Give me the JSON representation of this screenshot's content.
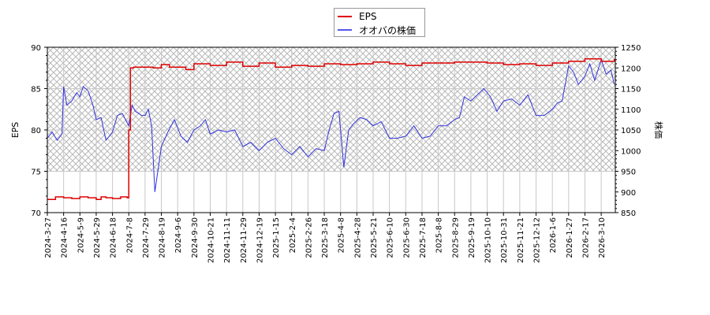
{
  "chart_data": {
    "type": "line",
    "title": "",
    "xlabel": "",
    "ylabel": "EPS",
    "y2label": "株価",
    "ylim": [
      70,
      90
    ],
    "y2lim": [
      850,
      1250
    ],
    "yticks": [
      70,
      75,
      80,
      85,
      90
    ],
    "y2ticks": [
      850,
      900,
      950,
      1000,
      1050,
      1100,
      1150,
      1200,
      1250
    ],
    "grid": true,
    "legend_position": "top-center",
    "hatched_region": {
      "y2_from": 950,
      "y2_to": 1250
    },
    "categories": [
      "2024-3-27",
      "2024-4-16",
      "2024-5-9",
      "2024-5-29",
      "2024-6-18",
      "2024-7-8",
      "2024-7-29",
      "2024-8-19",
      "2024-9-6",
      "2024-9-30",
      "2024-10-21",
      "2024-11-11",
      "2024-11-29",
      "2024-12-19",
      "2025-1-15",
      "2025-2-4",
      "2025-2-26",
      "2025-3-18",
      "2025-4-8",
      "2025-4-28",
      "2025-5-21",
      "2025-6-10",
      "2025-6-30",
      "2025-7-18",
      "2025-8-8",
      "2025-8-29",
      "2025-9-19",
      "2025-10-10",
      "2025-10-31",
      "2025-11-21",
      "2025-12-12",
      "2026-1-6",
      "2026-1-27",
      "2026-2-17",
      "2026-3-10"
    ],
    "series": [
      {
        "name": "EPS",
        "axis": "left",
        "color": "#dd0000",
        "x": [
          0,
          0.5,
          1,
          1.5,
          2,
          2.5,
          3,
          3.3,
          3.6,
          4,
          4.5,
          4.9,
          5,
          5.1,
          5.3,
          6,
          6.5,
          7,
          7.5,
          8,
          8.5,
          9,
          10,
          11,
          12,
          13,
          14,
          15,
          16,
          17,
          18,
          19,
          20,
          21,
          22,
          23,
          24,
          25,
          26,
          27,
          28,
          29,
          30,
          31,
          32,
          33,
          34,
          34.8
        ],
        "values": [
          71.6,
          71.9,
          71.8,
          71.7,
          71.9,
          71.8,
          71.6,
          71.9,
          71.8,
          71.7,
          71.9,
          71.8,
          80.0,
          87.5,
          87.6,
          87.6,
          87.5,
          87.9,
          87.6,
          87.6,
          87.3,
          88.0,
          87.8,
          88.2,
          87.7,
          88.1,
          87.6,
          87.8,
          87.7,
          88.0,
          87.9,
          88.0,
          88.2,
          88.0,
          87.8,
          88.1,
          88.1,
          88.2,
          88.2,
          88.1,
          87.9,
          88.0,
          87.8,
          88.1,
          88.3,
          88.6,
          88.3,
          88.5
        ]
      },
      {
        "name": "オオバの株価",
        "axis": "right",
        "color": "#3333dd",
        "x": [
          0,
          0.3,
          0.6,
          0.9,
          1.0,
          1.2,
          1.5,
          1.8,
          2.0,
          2.2,
          2.5,
          2.8,
          3.0,
          3.3,
          3.6,
          4.0,
          4.3,
          4.6,
          5.0,
          5.2,
          5.4,
          5.8,
          6.0,
          6.2,
          6.4,
          6.6,
          7.0,
          7.4,
          7.8,
          8.2,
          8.6,
          9.0,
          9.4,
          9.7,
          10.0,
          10.5,
          11.0,
          11.5,
          12.0,
          12.5,
          13.0,
          13.5,
          14.0,
          14.5,
          15.0,
          15.5,
          16.0,
          16.5,
          17.0,
          17.3,
          17.6,
          17.9,
          18.2,
          18.5,
          18.8,
          19.2,
          19.6,
          20.0,
          20.5,
          21.0,
          21.5,
          22.0,
          22.5,
          23.0,
          23.5,
          24.0,
          24.5,
          25.0,
          25.3,
          25.6,
          26.0,
          26.4,
          26.8,
          27.2,
          27.6,
          28.0,
          28.5,
          29.0,
          29.5,
          30.0,
          30.5,
          31.0,
          31.3,
          31.6,
          32.0,
          32.3,
          32.6,
          33.0,
          33.3,
          33.6,
          34.0,
          34.3,
          34.6,
          34.8
        ],
        "values": [
          1030,
          1045,
          1025,
          1040,
          1155,
          1110,
          1120,
          1140,
          1130,
          1155,
          1145,
          1110,
          1075,
          1080,
          1025,
          1045,
          1085,
          1090,
          1060,
          1110,
          1095,
          1085,
          1085,
          1100,
          1060,
          900,
          1010,
          1045,
          1075,
          1035,
          1020,
          1050,
          1060,
          1075,
          1040,
          1050,
          1045,
          1050,
          1010,
          1020,
          1000,
          1020,
          1030,
          1005,
          990,
          1010,
          985,
          1005,
          1000,
          1050,
          1090,
          1095,
          960,
          1050,
          1065,
          1080,
          1075,
          1060,
          1070,
          1030,
          1030,
          1035,
          1060,
          1030,
          1035,
          1060,
          1060,
          1075,
          1080,
          1130,
          1120,
          1135,
          1150,
          1130,
          1095,
          1120,
          1125,
          1110,
          1135,
          1085,
          1085,
          1100,
          1115,
          1120,
          1205,
          1190,
          1160,
          1180,
          1210,
          1170,
          1220,
          1185,
          1195,
          1160
        ]
      }
    ]
  },
  "legend": {
    "items": [
      {
        "label": "EPS",
        "color": "#dd0000"
      },
      {
        "label": "オオバの株価",
        "color": "#5555ee"
      }
    ]
  },
  "axes": {
    "left_title": "EPS",
    "right_title": "株価"
  }
}
